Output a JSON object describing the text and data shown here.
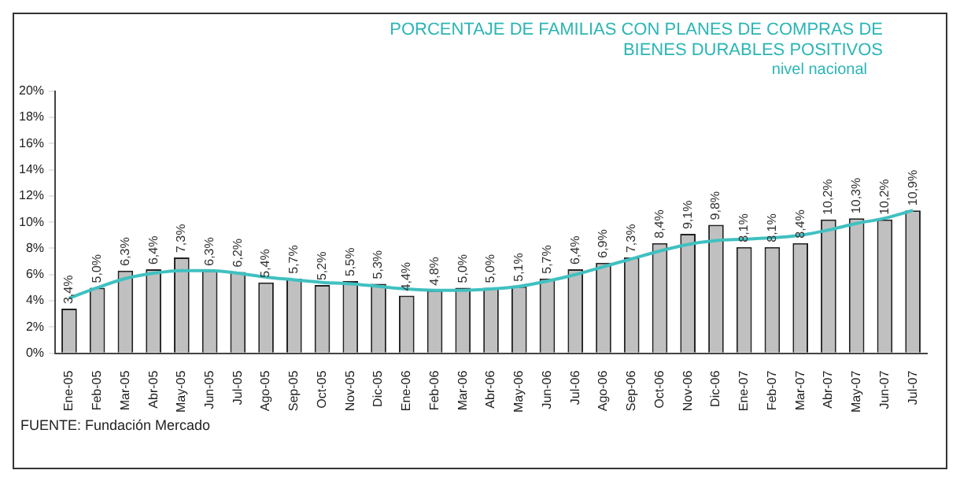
{
  "chart_data": {
    "type": "bar",
    "title": "PORCENTAJE DE FAMILIAS CON PLANES DE COMPRAS DE BIENES DURABLES POSITIVOS",
    "subtitle": "nivel nacional",
    "categories": [
      "Ene-05",
      "Feb-05",
      "Mar-05",
      "Abr-05",
      "May-05",
      "Jun-05",
      "Jul-05",
      "Ago-05",
      "Sep-05",
      "Oct-05",
      "Nov-05",
      "Dic-05",
      "Ene-06",
      "Feb-06",
      "Mar-06",
      "Abr-06",
      "May-06",
      "Jun-06",
      "Jul-06",
      "Ago-06",
      "Sep-06",
      "Oct-06",
      "Nov-06",
      "Dic-06",
      "Ene-07",
      "Feb-07",
      "Mar-07",
      "Abr-07",
      "May-07",
      "Jun-07",
      "Jul-07"
    ],
    "series": [
      {
        "color": "#c0c0c0",
        "values": [
          3.4,
          5.0,
          6.3,
          6.4,
          7.3,
          6.3,
          6.2,
          5.4,
          5.7,
          5.2,
          5.5,
          5.3,
          4.4,
          4.8,
          5.0,
          5.0,
          5.1,
          5.7,
          6.4,
          6.9,
          7.3,
          8.4,
          9.1,
          9.8,
          8.1,
          8.1,
          8.4,
          10.2,
          10.3,
          10.2,
          10.9
        ],
        "value_labels": [
          "3,4%",
          "5,0%",
          "6,3%",
          "6,4%",
          "7,3%",
          "6,3%",
          "6,2%",
          "5,4%",
          "5,7%",
          "5,2%",
          "5,5%",
          "5,3%",
          "4,4%",
          "4,8%",
          "5,0%",
          "5,0%",
          "5,1%",
          "5,7%",
          "6,4%",
          "6,9%",
          "7,3%",
          "8,4%",
          "9,1%",
          "9,8%",
          "8,1%",
          "8,1%",
          "8,4%",
          "10,2%",
          "10,3%",
          "10,2%",
          "10,9%"
        ]
      },
      {
        "type": "line",
        "color": "#40c0c0",
        "values": [
          4.2,
          5.0,
          5.7,
          6.1,
          6.3,
          6.3,
          6.1,
          5.8,
          5.6,
          5.4,
          5.3,
          5.1,
          4.9,
          4.8,
          4.8,
          4.9,
          5.1,
          5.5,
          6.0,
          6.6,
          7.2,
          7.8,
          8.3,
          8.6,
          8.7,
          8.8,
          9.0,
          9.4,
          9.9,
          10.3,
          10.9
        ]
      }
    ],
    "ylim": [
      0,
      20
    ],
    "yticks": [
      {
        "value": 0,
        "label": "0%"
      },
      {
        "value": 2,
        "label": "2%"
      },
      {
        "value": 4,
        "label": "4%"
      },
      {
        "value": 6,
        "label": "6%"
      },
      {
        "value": 8,
        "label": "8%"
      },
      {
        "value": 10,
        "label": "10%"
      },
      {
        "value": 12,
        "label": "12%"
      },
      {
        "value": 14,
        "label": "14%"
      },
      {
        "value": 16,
        "label": "16%"
      },
      {
        "value": 18,
        "label": "18%"
      },
      {
        "value": 20,
        "label": "20%"
      }
    ],
    "grid": false,
    "legend": false,
    "marker": "none",
    "line_style": "solid",
    "annotations": [
      "FUENTE: Fundación Mercado"
    ]
  }
}
